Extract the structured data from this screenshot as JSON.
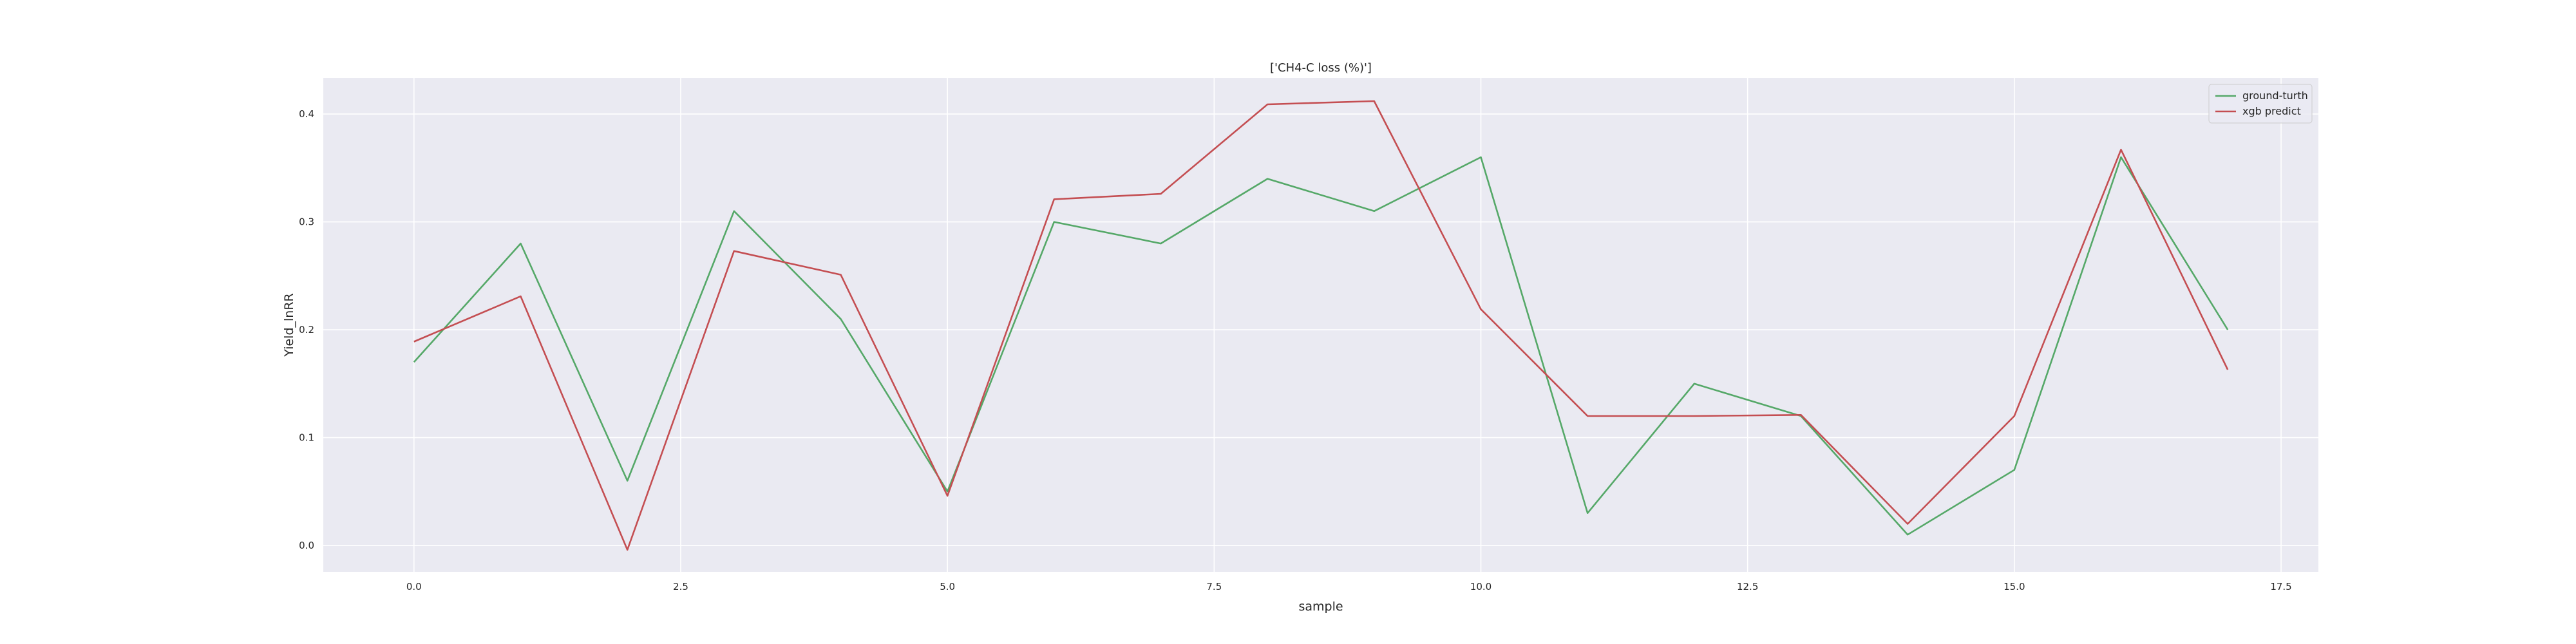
{
  "chart_data": {
    "type": "line",
    "title": "['CH4-C loss (%)']",
    "xlabel": "sample",
    "ylabel": "Yield_lnRR",
    "xlim": [
      -0.85,
      17.85
    ],
    "ylim": [
      -0.0245,
      0.4335
    ],
    "xticks": [
      0.0,
      2.5,
      5.0,
      7.5,
      10.0,
      12.5,
      15.0,
      17.5
    ],
    "xtick_labels": [
      "0.0",
      "2.5",
      "5.0",
      "7.5",
      "10.0",
      "12.5",
      "15.0",
      "17.5"
    ],
    "yticks": [
      0.0,
      0.1,
      0.2,
      0.3,
      0.4
    ],
    "ytick_labels": [
      "0.0",
      "0.1",
      "0.2",
      "0.3",
      "0.4"
    ],
    "grid": true,
    "legend_position": "top-right",
    "x": [
      0,
      1,
      2,
      3,
      4,
      5,
      6,
      7,
      8,
      9,
      10,
      11,
      12,
      13,
      14,
      15,
      16,
      17
    ],
    "series": [
      {
        "name": "ground-turth",
        "color": "#55a868",
        "values": [
          0.17,
          0.28,
          0.06,
          0.31,
          0.21,
          0.05,
          0.3,
          0.28,
          0.34,
          0.31,
          0.36,
          0.03,
          0.15,
          0.12,
          0.01,
          0.07,
          0.36,
          0.2
        ]
      },
      {
        "name": "xgb predict",
        "color": "#c44e52",
        "values": [
          0.189,
          0.231,
          -0.004,
          0.273,
          0.251,
          0.046,
          0.321,
          0.326,
          0.409,
          0.412,
          0.219,
          0.12,
          0.12,
          0.121,
          0.02,
          0.12,
          0.367,
          0.163
        ]
      }
    ],
    "colors": {
      "plot_background": "#eaeaf2",
      "grid": "#ffffff",
      "text": "#262626"
    }
  }
}
